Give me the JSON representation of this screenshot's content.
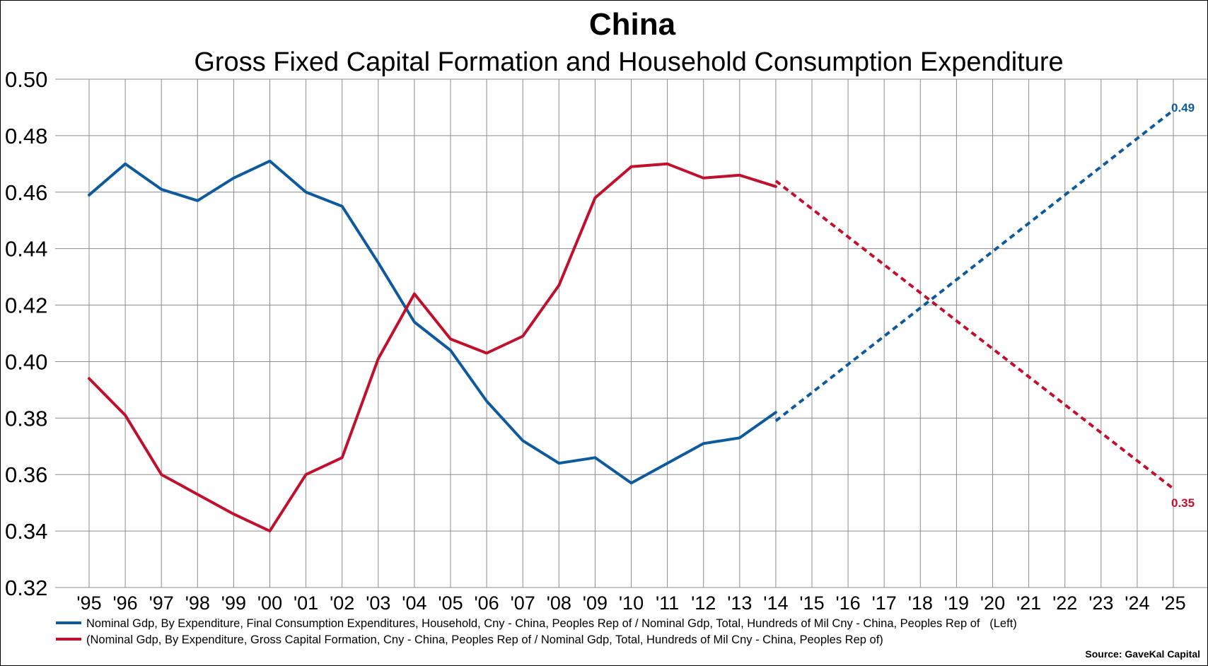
{
  "chart_data": {
    "type": "line",
    "title": "China",
    "subtitle": "Gross Fixed Capital Formation and Household Consumption Expenditure",
    "ylim": [
      0.32,
      0.5
    ],
    "yticks": [
      "0.50",
      "0.48",
      "0.46",
      "0.44",
      "0.42",
      "0.40",
      "0.38",
      "0.36",
      "0.34",
      "0.32"
    ],
    "categories": [
      "'95",
      "'96",
      "'97",
      "'98",
      "'99",
      "'00",
      "'01",
      "'02",
      "'03",
      "'04",
      "'05",
      "'06",
      "'07",
      "'08",
      "'09",
      "'10",
      "'11",
      "'12",
      "'13",
      "'14",
      "'15",
      "'16",
      "'17",
      "'18",
      "'19",
      "'20",
      "'21",
      "'22",
      "'23",
      "'24",
      "'25"
    ],
    "grid": true,
    "legend_position": "bottom",
    "series": [
      {
        "name": "Nominal Gdp, By Expenditure, Final Consumption Expenditures, Household, Cny - China, Peoples Rep of / Nominal Gdp, Total, Hundreds of Mil Cny - China, Peoples Rep of   (Left)",
        "color": "#0e5a9c",
        "x": [
          0,
          1,
          2,
          3,
          4,
          5,
          6,
          7,
          8,
          9,
          10,
          11,
          12,
          13,
          14,
          15,
          16,
          17,
          18,
          19
        ],
        "values": [
          0.459,
          0.47,
          0.461,
          0.457,
          0.465,
          0.471,
          0.46,
          0.455,
          0.435,
          0.414,
          0.404,
          0.386,
          0.372,
          0.364,
          0.366,
          0.357,
          0.364,
          0.371,
          0.373,
          0.382
        ],
        "projection": {
          "x": [
            19,
            30
          ],
          "values": [
            0.379,
            0.489
          ]
        },
        "end_label": "0.49"
      },
      {
        "name": "(Nominal Gdp, By Expenditure, Gross Capital Formation, Cny - China, Peoples Rep of / Nominal Gdp, Total, Hundreds of Mil Cny - China, Peoples Rep of)",
        "color": "#c0102e",
        "x": [
          0,
          1,
          2,
          3,
          4,
          5,
          6,
          7,
          8,
          9,
          10,
          11,
          12,
          13,
          14,
          15,
          16,
          17,
          18,
          19
        ],
        "values": [
          0.394,
          0.381,
          0.36,
          0.353,
          0.346,
          0.34,
          0.36,
          0.366,
          0.401,
          0.424,
          0.408,
          0.403,
          0.409,
          0.427,
          0.458,
          0.469,
          0.47,
          0.465,
          0.466,
          0.462
        ],
        "projection": {
          "x": [
            19,
            30
          ],
          "values": [
            0.464,
            0.355
          ]
        },
        "end_label": "0.35"
      }
    ],
    "source": "Source: GaveKal Capital"
  }
}
